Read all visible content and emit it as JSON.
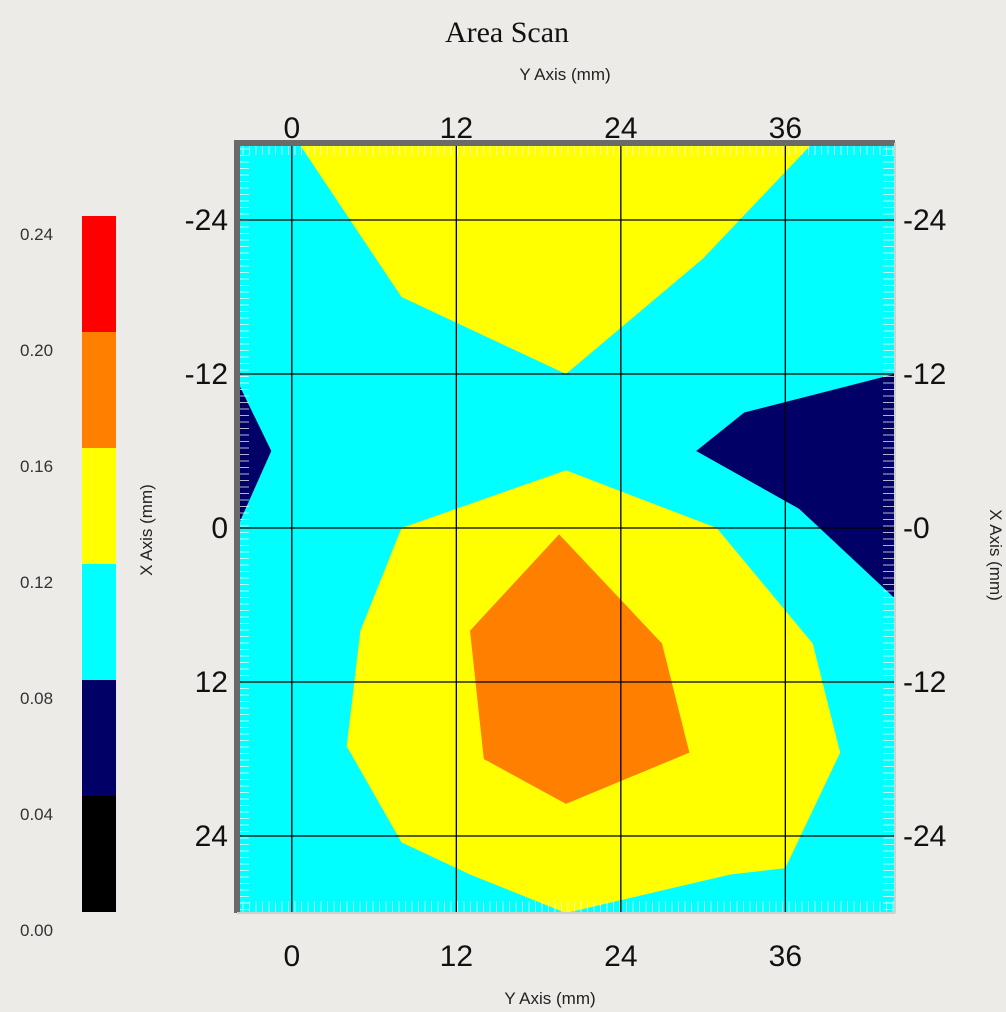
{
  "chart_data": {
    "type": "heatmap",
    "title": "Area Scan",
    "x_axis": {
      "label": "Y Axis (mm)",
      "ticks": [
        0,
        12,
        24,
        36
      ],
      "range": [
        -4,
        44
      ]
    },
    "y_axis": {
      "label": "X Axis (mm)",
      "ticks": [
        -24,
        -12,
        0,
        12,
        24
      ],
      "right_ticks": [
        "-24",
        "-12",
        "-0",
        "-12",
        "-24"
      ],
      "range": [
        -30,
        30
      ],
      "inverted": true
    },
    "colorbar": {
      "ticks": [
        "0.00",
        "0.04",
        "0.08",
        "0.12",
        "0.16",
        "0.20",
        "0.24"
      ],
      "bands": [
        {
          "min": 0.0,
          "max": 0.04,
          "color": "#000000"
        },
        {
          "min": 0.04,
          "max": 0.08,
          "color": "#000066"
        },
        {
          "min": 0.08,
          "max": 0.12,
          "color": "#00ffff"
        },
        {
          "min": 0.12,
          "max": 0.16,
          "color": "#ffff00"
        },
        {
          "min": 0.16,
          "max": 0.2,
          "color": "#ff7f00"
        },
        {
          "min": 0.2,
          "max": 0.24,
          "color": "#ff0000"
        }
      ]
    },
    "grid": true,
    "background_level": 0.1,
    "regions": [
      {
        "level": 0.14,
        "color": "#ffff00",
        "points": [
          [
            0.5,
            -30
          ],
          [
            38,
            -30
          ],
          [
            30,
            -21
          ],
          [
            20,
            -12
          ],
          [
            8,
            -18
          ]
        ]
      },
      {
        "level": 0.06,
        "color": "#000066",
        "points": [
          [
            -4,
            -11.5
          ],
          [
            -1.5,
            -6
          ],
          [
            -4,
            0
          ]
        ]
      },
      {
        "level": 0.06,
        "color": "#000066",
        "points": [
          [
            29.5,
            -6
          ],
          [
            33,
            -9
          ],
          [
            44,
            -12
          ],
          [
            44,
            5.5
          ],
          [
            37,
            -1.5
          ]
        ]
      },
      {
        "level": 0.14,
        "color": "#ffff00",
        "points": [
          [
            8,
            0
          ],
          [
            20,
            -4.5
          ],
          [
            31,
            0
          ],
          [
            38,
            9
          ],
          [
            40,
            17.5
          ],
          [
            36,
            26.5
          ],
          [
            32,
            27
          ],
          [
            28,
            28
          ],
          [
            20,
            30
          ],
          [
            13,
            27
          ],
          [
            8,
            24.5
          ],
          [
            4,
            17
          ],
          [
            5,
            8
          ]
        ]
      },
      {
        "level": 0.18,
        "color": "#ff7f00",
        "points": [
          [
            19.5,
            0.5
          ],
          [
            27,
            9
          ],
          [
            29,
            17.5
          ],
          [
            20,
            21.5
          ],
          [
            14,
            18
          ],
          [
            13,
            8
          ]
        ]
      }
    ]
  }
}
